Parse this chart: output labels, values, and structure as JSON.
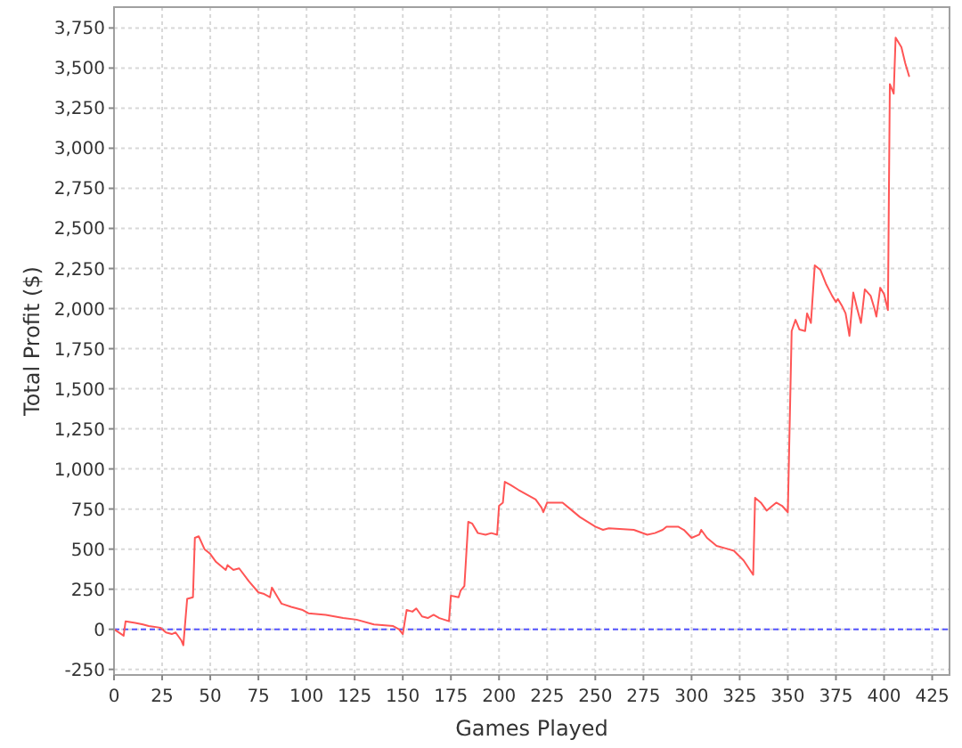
{
  "chart_data": {
    "type": "line",
    "xlabel": "Games Played",
    "ylabel": "Total Profit ($)",
    "xlim": [
      0,
      434
    ],
    "xticks": [
      0,
      25,
      50,
      75,
      100,
      125,
      150,
      175,
      200,
      225,
      250,
      275,
      300,
      325,
      350,
      375,
      400,
      425
    ],
    "ylim": [
      -285,
      3880
    ],
    "yticks": [
      -250,
      0,
      250,
      500,
      750,
      {
        "value": 1000,
        "label": "1,000"
      },
      {
        "value": 1250,
        "label": "1,250"
      },
      {
        "value": 1500,
        "label": "1,500"
      },
      {
        "value": 1750,
        "label": "1,750"
      },
      {
        "value": 2000,
        "label": "2,000"
      },
      {
        "value": 2250,
        "label": "2,250"
      },
      {
        "value": 2500,
        "label": "2,500"
      },
      {
        "value": 2750,
        "label": "2,750"
      },
      {
        "value": 3000,
        "label": "3,000"
      },
      {
        "value": 3250,
        "label": "3,250"
      },
      {
        "value": 3500,
        "label": "3,500"
      },
      {
        "value": 3750,
        "label": "3,750"
      }
    ],
    "grid": true,
    "ref_lines": [
      {
        "axis": "y",
        "value": 0,
        "color": "#5555ff",
        "line_style": "dashed"
      }
    ],
    "color": "#ff5555",
    "x": [
      0,
      5,
      6,
      11,
      15,
      18,
      24,
      27,
      30,
      32,
      35,
      36,
      38,
      41,
      42,
      44,
      47,
      50,
      53,
      58,
      59,
      62,
      65,
      70,
      75,
      78,
      81,
      82,
      85,
      87,
      92,
      98,
      101,
      110,
      119,
      126,
      135,
      145,
      148,
      150,
      152,
      155,
      157,
      160,
      163,
      166,
      169,
      174,
      175,
      179,
      180,
      182,
      184,
      186,
      189,
      193,
      196,
      199,
      200,
      202,
      203,
      206,
      210,
      219,
      222,
      223,
      225,
      233,
      237,
      242,
      250,
      254,
      257,
      270,
      277,
      281,
      285,
      287,
      293,
      296,
      300,
      304,
      305,
      308,
      313,
      319,
      322,
      327,
      332,
      333,
      336,
      339,
      341,
      344,
      347,
      350,
      352,
      354,
      356,
      359,
      360,
      362,
      364,
      367,
      370,
      373,
      375,
      376,
      378,
      380,
      382,
      384,
      386,
      388,
      390,
      393,
      395,
      396,
      398,
      400,
      402,
      403,
      405,
      406,
      409,
      411,
      413
    ],
    "values": [
      0,
      -40,
      50,
      40,
      30,
      20,
      10,
      -20,
      -30,
      -20,
      -70,
      -100,
      190,
      200,
      570,
      580,
      500,
      470,
      420,
      370,
      400,
      370,
      380,
      300,
      230,
      220,
      200,
      260,
      200,
      160,
      140,
      120,
      100,
      90,
      70,
      60,
      30,
      20,
      0,
      -30,
      120,
      110,
      130,
      80,
      70,
      90,
      70,
      50,
      210,
      200,
      240,
      270,
      670,
      660,
      600,
      590,
      600,
      590,
      770,
      790,
      920,
      900,
      870,
      810,
      760,
      730,
      790,
      790,
      750,
      700,
      640,
      620,
      630,
      620,
      590,
      600,
      620,
      640,
      640,
      620,
      570,
      590,
      620,
      570,
      520,
      500,
      490,
      430,
      340,
      820,
      790,
      740,
      760,
      790,
      770,
      730,
      1860,
      1930,
      1870,
      1860,
      1970,
      1910,
      2270,
      2240,
      2150,
      2080,
      2040,
      2060,
      2020,
      1970,
      1830,
      2100,
      2000,
      1910,
      2120,
      2080,
      2000,
      1950,
      2130,
      2090,
      1990,
      3400,
      3340,
      3690,
      3630,
      3530,
      3450
    ]
  }
}
